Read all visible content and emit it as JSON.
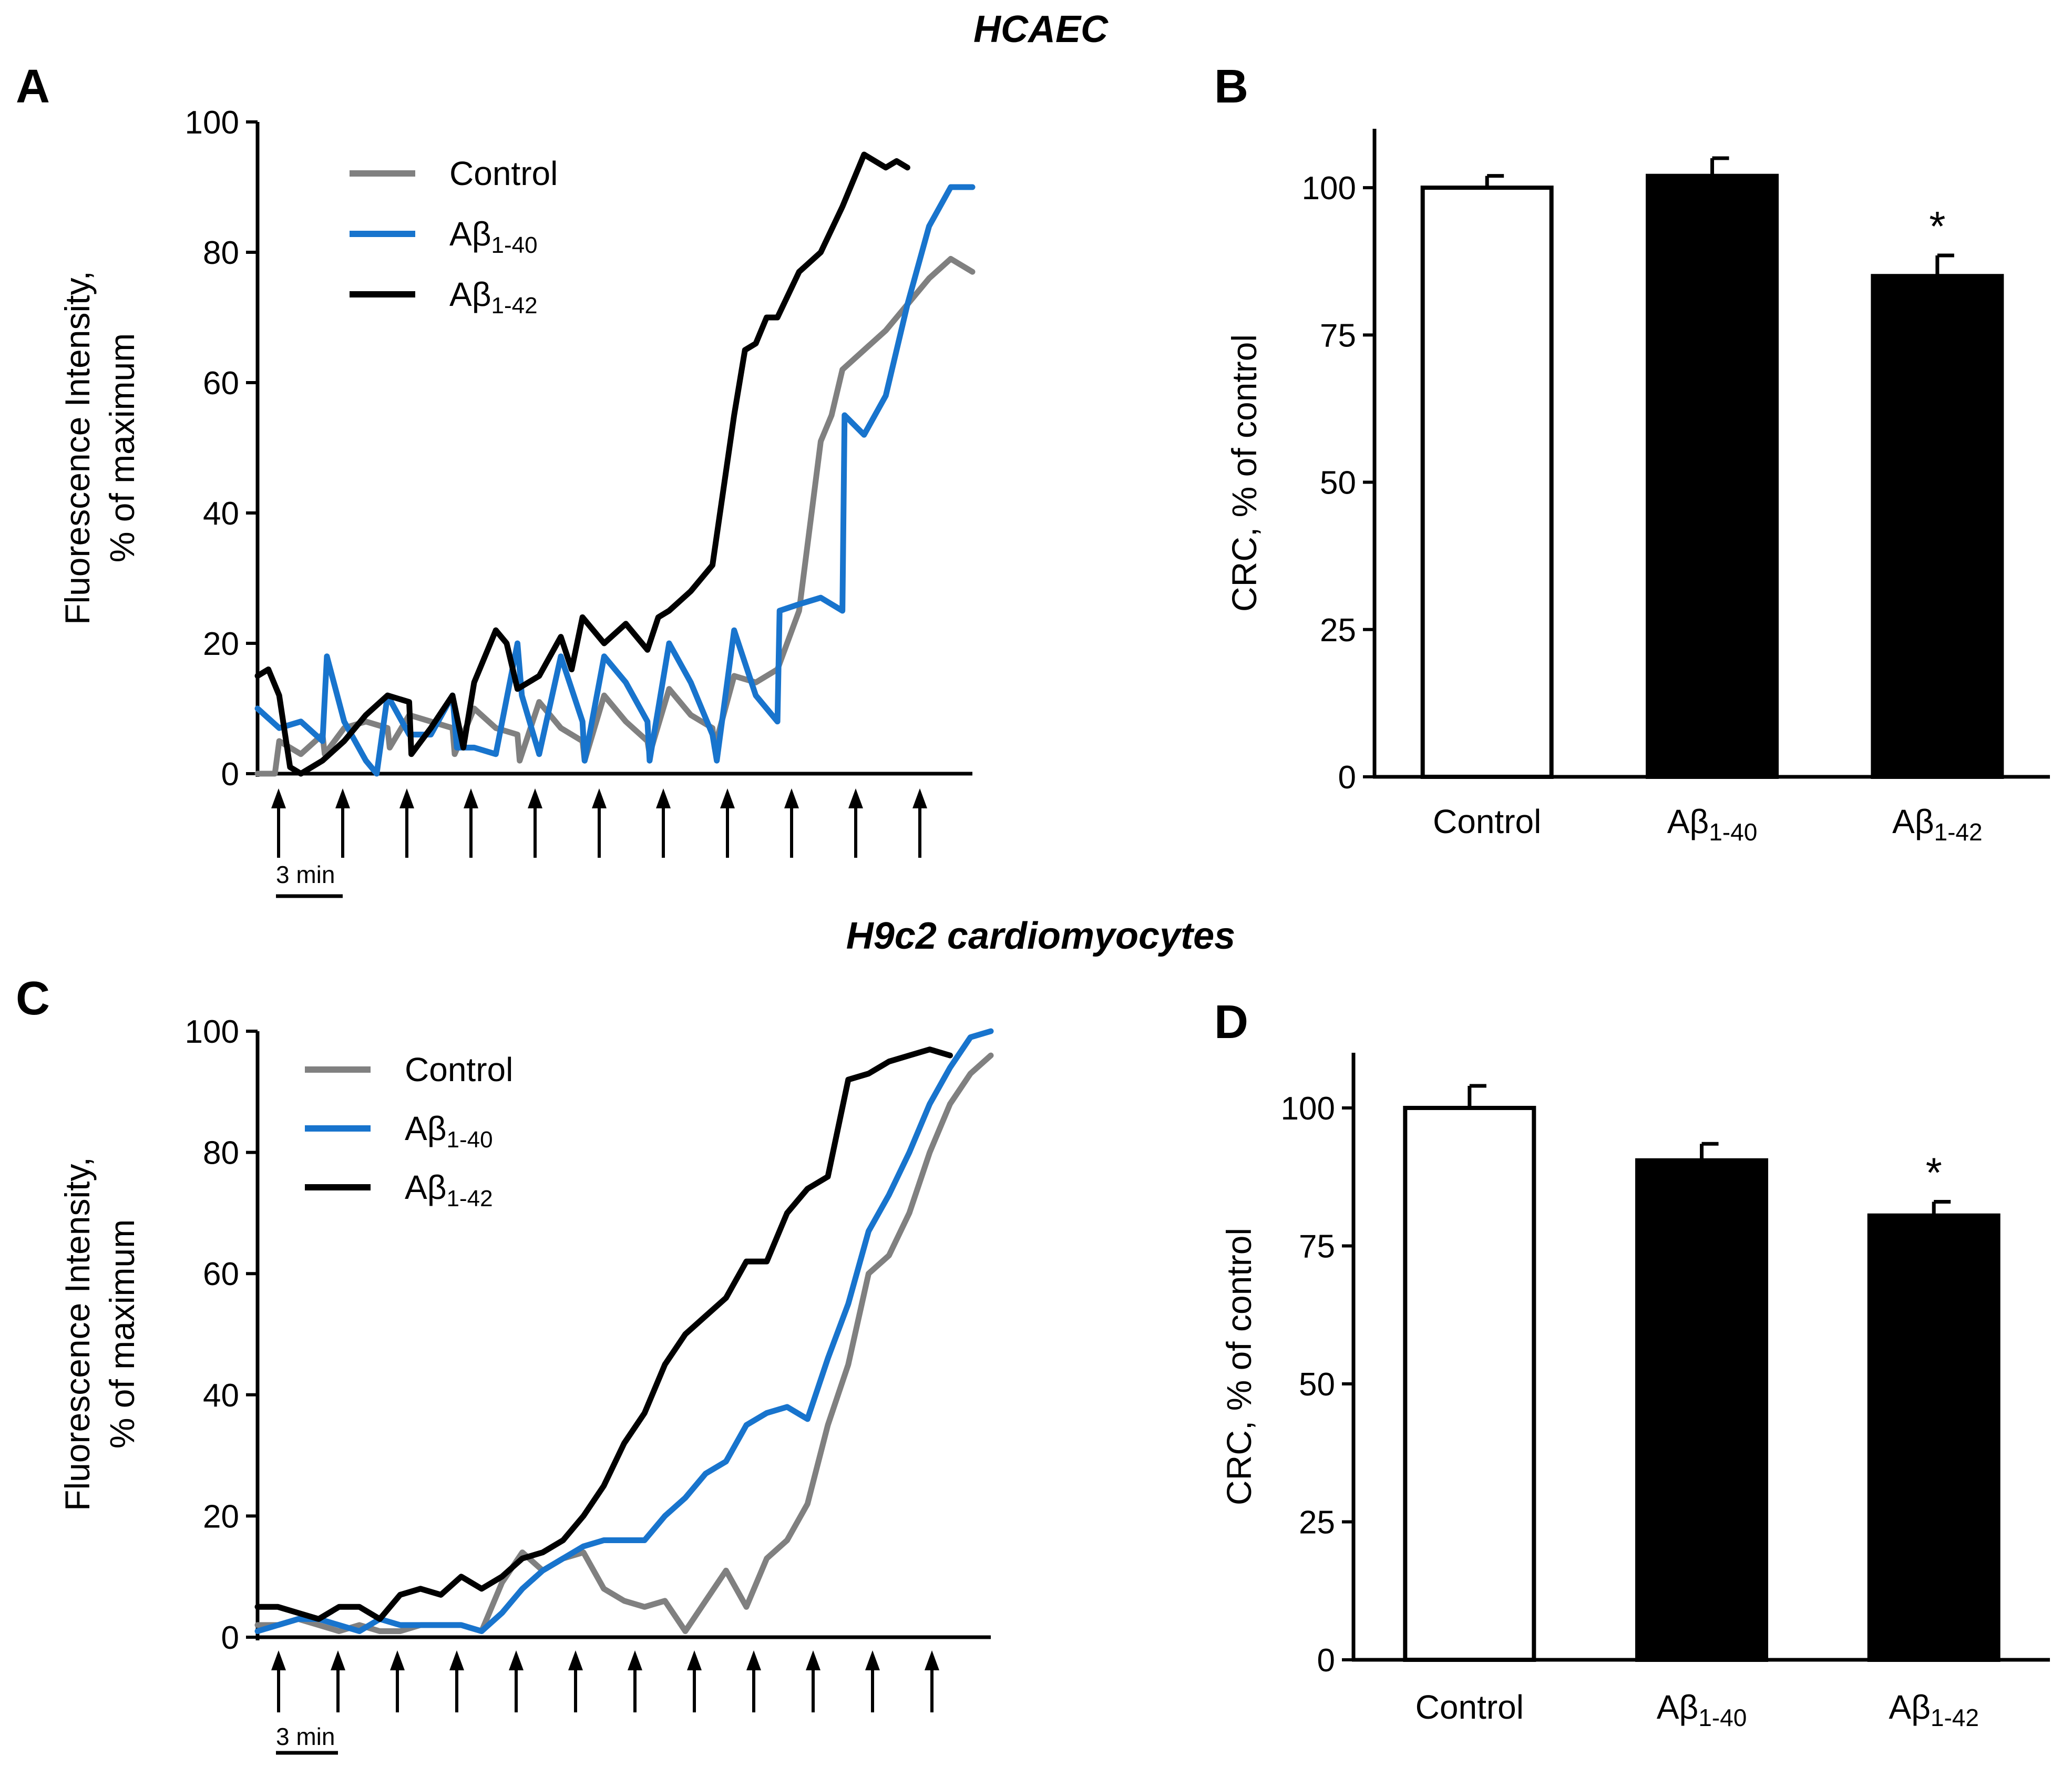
{
  "colors": {
    "control": "#808080",
    "ab140": "#1874CD",
    "ab142": "#000000"
  },
  "sections": {
    "top": "HCAEC",
    "bottom": "H9c2 cardiomyocytes"
  },
  "chart_data": [
    {
      "panel": "A",
      "type": "line",
      "ylabel_line1": "Fluorescence Intensity,",
      "ylabel_line2": "% of maximum",
      "ylim": [
        0,
        100
      ],
      "yticks": [
        "0",
        "20",
        "40",
        "60",
        "80",
        "100"
      ],
      "arrows": 11,
      "scale_bar": "3 min",
      "x_range_min": [
        0,
        33
      ],
      "legend": [
        {
          "key": "control",
          "name": "Control",
          "sub": ""
        },
        {
          "key": "ab140",
          "name": "Aβ",
          "sub": "1-40"
        },
        {
          "key": "ab142",
          "name": "Aβ",
          "sub": "1-42"
        }
      ],
      "series": [
        {
          "key": "control",
          "x": [
            0,
            0.8,
            1,
            2,
            3,
            3.1,
            4,
            5,
            6,
            6.1,
            7,
            8,
            9,
            9.1,
            10,
            11,
            12,
            12.1,
            13,
            14,
            15,
            15.1,
            16,
            17,
            18,
            18.1,
            19,
            20,
            21,
            21.1,
            22,
            23,
            24,
            25,
            26,
            26.5,
            27,
            28,
            29,
            30,
            31,
            32,
            32.5,
            33
          ],
          "y": [
            0,
            0,
            5,
            3,
            6,
            3,
            7,
            8,
            7,
            4,
            9,
            8,
            7,
            3,
            10,
            7,
            6,
            2,
            11,
            7,
            5,
            2,
            12,
            8,
            5,
            3,
            13,
            9,
            7,
            4,
            15,
            14,
            16,
            25,
            51,
            55,
            62,
            65,
            68,
            72,
            76,
            79,
            78,
            77
          ]
        },
        {
          "key": "ab140",
          "x": [
            0,
            1,
            2,
            3,
            3.2,
            4,
            5,
            5.5,
            6,
            7,
            8,
            9,
            9.2,
            10,
            11,
            12,
            12.2,
            13,
            14,
            15,
            15.1,
            16,
            17,
            18,
            18.1,
            19,
            20,
            21,
            21.2,
            22,
            23,
            24,
            24.1,
            25,
            26,
            27,
            27.1,
            28,
            29,
            30,
            31,
            32,
            33
          ],
          "y": [
            10,
            7,
            8,
            5,
            18,
            8,
            2,
            0,
            12,
            6,
            6,
            12,
            4,
            4,
            3,
            20,
            12,
            3,
            18,
            8,
            2,
            18,
            14,
            8,
            2,
            20,
            14,
            6,
            2,
            22,
            12,
            8,
            25,
            26,
            27,
            25,
            55,
            52,
            58,
            72,
            84,
            90,
            90
          ]
        },
        {
          "key": "ab142",
          "x": [
            0,
            0.5,
            1,
            1.5,
            2,
            3,
            4,
            5,
            6,
            7,
            7.1,
            8,
            9,
            9.5,
            10,
            11,
            11.5,
            12,
            13,
            14,
            14.5,
            15,
            16,
            17,
            18,
            18.5,
            19,
            20,
            21,
            22,
            22.5,
            23,
            23.5,
            24,
            25,
            26,
            27,
            28,
            29,
            29.5,
            30
          ],
          "y": [
            15,
            16,
            12,
            1,
            0,
            2,
            5,
            9,
            12,
            11,
            3,
            7,
            12,
            4,
            14,
            22,
            20,
            13,
            15,
            21,
            16,
            24,
            20,
            23,
            19,
            24,
            25,
            28,
            32,
            55,
            65,
            66,
            70,
            70,
            77,
            80,
            87,
            95,
            93,
            94,
            93
          ]
        }
      ]
    },
    {
      "panel": "B",
      "type": "bar",
      "ylabel": "CRC, % of control",
      "ylim": [
        0,
        110
      ],
      "yticks": [
        "0",
        "25",
        "50",
        "75",
        "100"
      ],
      "categories": [
        {
          "name": "Control",
          "sub": ""
        },
        {
          "name": "Aβ",
          "sub": "1-40"
        },
        {
          "name": "Aβ",
          "sub": "1-42"
        }
      ],
      "values": [
        100,
        102,
        85
      ],
      "errors": [
        2,
        3,
        3.5
      ],
      "fills": [
        "#ffffff",
        "#000000",
        "#000000"
      ],
      "significance": [
        "",
        "",
        "*"
      ]
    },
    {
      "panel": "C",
      "type": "line",
      "ylabel_line1": "Fluorescence Intensity,",
      "ylabel_line2": "% of  maximum",
      "ylim": [
        0,
        100
      ],
      "yticks": [
        "0",
        "20",
        "40",
        "60",
        "80",
        "100"
      ],
      "arrows": 12,
      "scale_bar": "3 min",
      "x_range_min": [
        0,
        36
      ],
      "legend": [
        {
          "key": "control",
          "name": "Control",
          "sub": ""
        },
        {
          "key": "ab140",
          "name": "Aβ",
          "sub": "1-40"
        },
        {
          "key": "ab142",
          "name": "Aβ",
          "sub": "1-42"
        }
      ],
      "series": [
        {
          "key": "control",
          "x": [
            0,
            1,
            2,
            3,
            4,
            5,
            6,
            7,
            8,
            9,
            10,
            11,
            12,
            13,
            14,
            15,
            16,
            17,
            18,
            19,
            20,
            21,
            22,
            23,
            24,
            25,
            26,
            27,
            28,
            29,
            30,
            31,
            32,
            33,
            34,
            35,
            36
          ],
          "y": [
            2,
            2,
            3,
            2,
            1,
            2,
            1,
            1,
            2,
            2,
            2,
            1,
            9,
            14,
            11,
            13,
            14,
            8,
            6,
            5,
            6,
            1,
            6,
            11,
            5,
            13,
            16,
            22,
            35,
            45,
            60,
            63,
            70,
            80,
            88,
            93,
            96
          ]
        },
        {
          "key": "ab140",
          "x": [
            0,
            1,
            2,
            3,
            4,
            5,
            6,
            7,
            8,
            9,
            10,
            11,
            12,
            13,
            14,
            15,
            16,
            17,
            18,
            19,
            20,
            21,
            22,
            23,
            24,
            25,
            26,
            27,
            28,
            29,
            30,
            31,
            32,
            33,
            34,
            35,
            36
          ],
          "y": [
            1,
            2,
            3,
            3,
            2,
            1,
            3,
            2,
            2,
            2,
            2,
            1,
            4,
            8,
            11,
            13,
            15,
            16,
            16,
            16,
            20,
            23,
            27,
            29,
            35,
            37,
            38,
            36,
            46,
            55,
            67,
            73,
            80,
            88,
            94,
            99,
            100
          ]
        },
        {
          "key": "ab142",
          "x": [
            0,
            1,
            2,
            3,
            4,
            5,
            6,
            7,
            8,
            9,
            10,
            11,
            12,
            13,
            14,
            15,
            16,
            17,
            18,
            19,
            20,
            21,
            22,
            23,
            24,
            25,
            26,
            27,
            28,
            29,
            30,
            31,
            32,
            33,
            34
          ],
          "y": [
            5,
            5,
            4,
            3,
            5,
            5,
            3,
            7,
            8,
            7,
            10,
            8,
            10,
            13,
            14,
            16,
            20,
            25,
            32,
            37,
            45,
            50,
            53,
            56,
            62,
            62,
            70,
            74,
            76,
            92,
            93,
            95,
            96,
            97,
            96
          ]
        }
      ]
    },
    {
      "panel": "D",
      "type": "bar",
      "ylabel": "CRC, % of control",
      "ylim": [
        0,
        110
      ],
      "yticks": [
        "0",
        "25",
        "50",
        "75",
        "100"
      ],
      "categories": [
        {
          "name": "Control",
          "sub": ""
        },
        {
          "name": "Aβ",
          "sub": "1-40"
        },
        {
          "name": "Aβ",
          "sub": "1-42"
        }
      ],
      "values": [
        100,
        90.5,
        80.5
      ],
      "errors": [
        4,
        3,
        2.5
      ],
      "fills": [
        "#ffffff",
        "#000000",
        "#000000"
      ],
      "significance": [
        "",
        "",
        "*"
      ]
    }
  ]
}
